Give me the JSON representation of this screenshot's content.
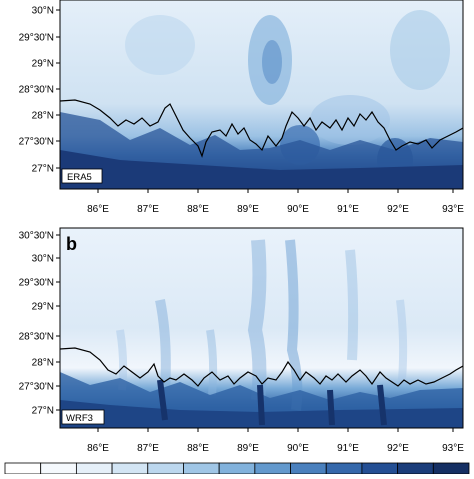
{
  "panels": [
    {
      "label": "",
      "model": "ERA5",
      "lat_ticks": [
        "30°N",
        "29°30'N",
        "29°N",
        "28°30'N",
        "28°N",
        "27°30'N",
        "27°N"
      ],
      "lon_ticks": [
        "86°E",
        "87°E",
        "88°E",
        "89°E",
        "90°E",
        "91°E",
        "92°E",
        "93°E"
      ]
    },
    {
      "label": "b",
      "model": "WRF3",
      "lat_ticks": [
        "30°30'N",
        "30°N",
        "29°30'N",
        "29°N",
        "28°30'N",
        "28°N",
        "27°30'N",
        "27°N"
      ],
      "lon_ticks": [
        "86°E",
        "87°E",
        "88°E",
        "89°E",
        "90°E",
        "91°E",
        "92°E",
        "93°E"
      ]
    }
  ],
  "colorbar": {
    "colors": [
      "#ffffff",
      "#f5f9fd",
      "#e6f0f9",
      "#d3e5f4",
      "#bcd7ee",
      "#a0c6e6",
      "#82b2dc",
      "#6399cd",
      "#4a80bd",
      "#3568ab",
      "#244f94",
      "#1b3d7a",
      "#152f63"
    ]
  },
  "colors": {
    "outline": "#000000",
    "shading_light": "#eaf3fb",
    "shading_dark": "#1b3a78"
  }
}
